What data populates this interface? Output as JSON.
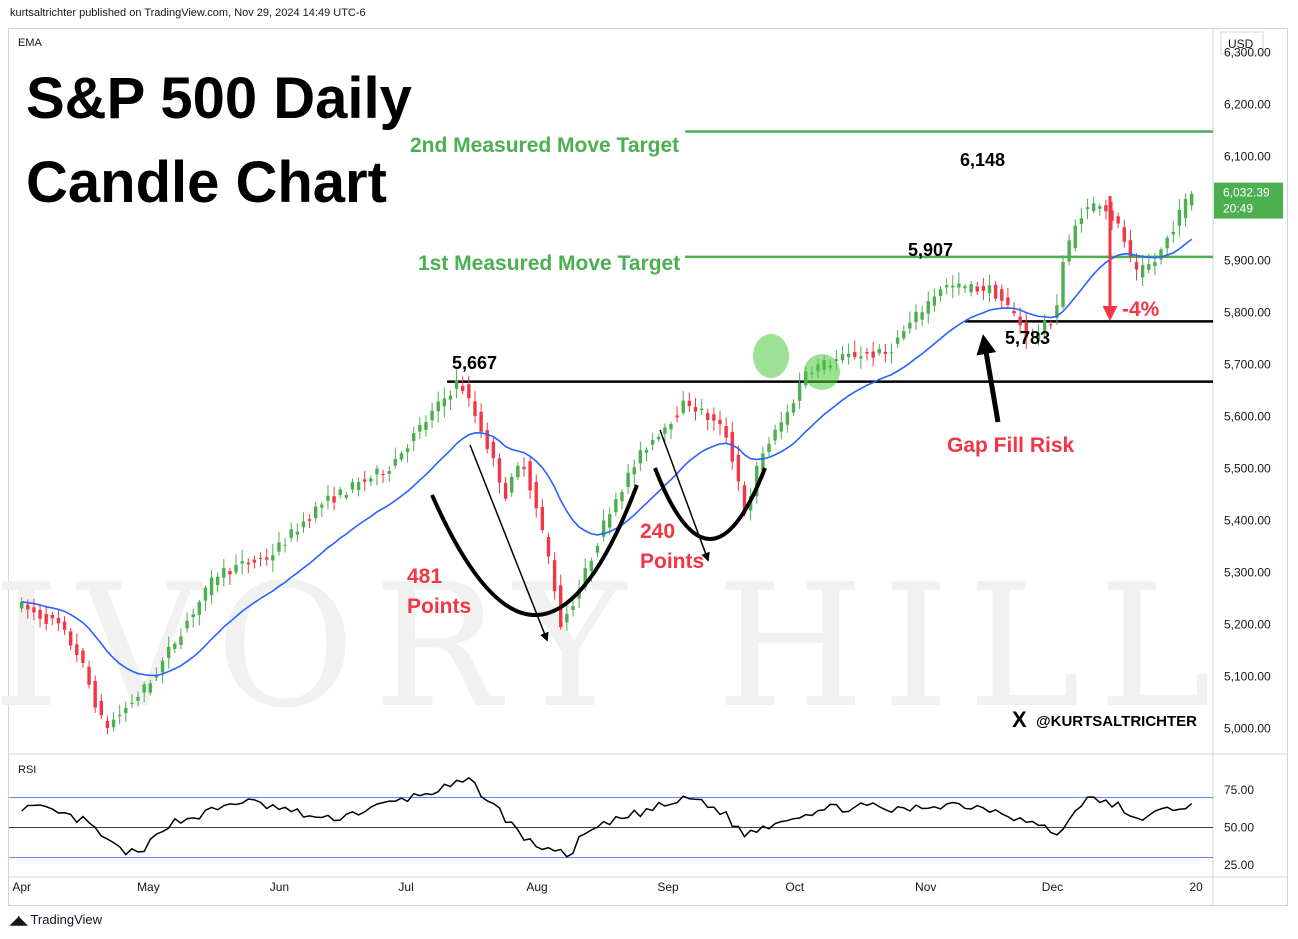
{
  "header": {
    "published": "kurtsaltrichter published on TradingView.com, Nov 29, 2024 14:49 UTC-6"
  },
  "footer": {
    "brand": "TradingView"
  },
  "colors": {
    "up": "#4caf50",
    "down": "#f23645",
    "ema": "#2962ff",
    "green_line": "#4caf50",
    "annot_red": "#f23645",
    "price_tag": "#4caf50"
  },
  "chart_data": {
    "type": "candlestick",
    "title": "S&P 500 Daily Candle Chart",
    "title_lines": [
      "S&P 500 Daily",
      "Candle Chart"
    ],
    "indicator_label": "EMA",
    "currency": "USD",
    "y_ticks": [
      "6,300.00",
      "6,200.00",
      "6,100.00",
      "6,000.00",
      "5,900.00",
      "5,800.00",
      "5,700.00",
      "5,600.00",
      "5,500.00",
      "5,400.00",
      "5,300.00",
      "5,200.00",
      "5,100.00",
      "5,000.00"
    ],
    "y_tick_values": [
      6300,
      6200,
      6100,
      6000,
      5900,
      5800,
      5700,
      5600,
      5500,
      5400,
      5300,
      5200,
      5100,
      5000
    ],
    "ylim": [
      4955,
      6345
    ],
    "x_ticks": [
      "Apr",
      "May",
      "Jun",
      "Jul",
      "Aug",
      "Sep",
      "Oct",
      "Nov",
      "Dec",
      "20"
    ],
    "x_tick_days": [
      0,
      30,
      61,
      91,
      122,
      153,
      183,
      214,
      244,
      278
    ],
    "x_days_range": [
      -3,
      282
    ],
    "last_price": {
      "value": "6,032.39",
      "time": "20:49",
      "numeric": 6032.39
    },
    "levels": [
      {
        "name": "2nd Measured Move Target",
        "value": 6148,
        "label": "6,148",
        "color": "green"
      },
      {
        "name": "1st Measured Move Target",
        "value": 5907,
        "label": "5,907",
        "color": "green"
      },
      {
        "name": "gap-fill",
        "value": 5783,
        "label": "5,783",
        "color": "black"
      },
      {
        "name": "breakout",
        "value": 5667,
        "label": "5,667",
        "color": "black"
      }
    ],
    "annotations": {
      "target2": "2nd Measured Move Target",
      "target1": "1st Measured Move Target",
      "drop1_line1": "481",
      "drop1_line2": "Points",
      "drop2_line1": "240",
      "drop2_line2": "Points",
      "gap_fill": "Gap Fill Risk",
      "pct": "-4%",
      "watermark": "IVORY HILL",
      "twitter": "@KURTSALTRICHTER",
      "twitter_x": "X"
    },
    "anchors": [
      [
        0,
        5240
      ],
      [
        10,
        5200
      ],
      [
        15,
        5140
      ],
      [
        21,
        5000
      ],
      [
        25,
        5030
      ],
      [
        32,
        5090
      ],
      [
        40,
        5200
      ],
      [
        48,
        5300
      ],
      [
        60,
        5330
      ],
      [
        72,
        5430
      ],
      [
        88,
        5500
      ],
      [
        96,
        5580
      ],
      [
        105,
        5670
      ],
      [
        110,
        5580
      ],
      [
        116,
        5450
      ],
      [
        120,
        5520
      ],
      [
        124,
        5400
      ],
      [
        127,
        5300
      ],
      [
        129,
        5200
      ],
      [
        133,
        5260
      ],
      [
        141,
        5430
      ],
      [
        149,
        5540
      ],
      [
        159,
        5630
      ],
      [
        168,
        5570
      ],
      [
        171,
        5480
      ],
      [
        173,
        5400
      ],
      [
        176,
        5520
      ],
      [
        183,
        5610
      ],
      [
        187,
        5690
      ],
      [
        199,
        5720
      ],
      [
        206,
        5720
      ],
      [
        214,
        5800
      ],
      [
        219,
        5850
      ],
      [
        231,
        5845
      ],
      [
        236,
        5800
      ],
      [
        240,
        5750
      ],
      [
        246,
        5790
      ],
      [
        248,
        5900
      ],
      [
        252,
        5990
      ],
      [
        257,
        6015
      ],
      [
        262,
        5950
      ],
      [
        265,
        5870
      ],
      [
        270,
        5900
      ],
      [
        278,
        6030
      ]
    ],
    "rsi": {
      "label": "RSI",
      "ticks": [
        "75.00",
        "50.00",
        "25.00"
      ],
      "tick_values": [
        75,
        50,
        25
      ],
      "ylim": [
        17,
        97
      ],
      "bands": [
        70,
        50,
        30
      ],
      "anchors": [
        [
          0,
          64
        ],
        [
          5,
          62
        ],
        [
          15,
          54
        ],
        [
          22,
          37
        ],
        [
          28,
          31
        ],
        [
          34,
          52
        ],
        [
          42,
          58
        ],
        [
          52,
          68
        ],
        [
          62,
          62
        ],
        [
          72,
          55
        ],
        [
          82,
          62
        ],
        [
          92,
          70
        ],
        [
          100,
          76
        ],
        [
          106,
          81
        ],
        [
          110,
          70
        ],
        [
          116,
          52
        ],
        [
          120,
          40
        ],
        [
          126,
          35
        ],
        [
          129,
          30
        ],
        [
          133,
          45
        ],
        [
          141,
          55
        ],
        [
          150,
          63
        ],
        [
          159,
          70
        ],
        [
          166,
          60
        ],
        [
          171,
          45
        ],
        [
          175,
          50
        ],
        [
          183,
          58
        ],
        [
          192,
          63
        ],
        [
          200,
          64
        ],
        [
          208,
          61
        ],
        [
          214,
          64
        ],
        [
          220,
          66
        ],
        [
          231,
          62
        ],
        [
          236,
          56
        ],
        [
          240,
          52
        ],
        [
          246,
          45
        ],
        [
          250,
          66
        ],
        [
          254,
          69
        ],
        [
          260,
          64
        ],
        [
          262,
          55
        ],
        [
          268,
          59
        ],
        [
          274,
          64
        ],
        [
          278,
          66
        ]
      ]
    }
  }
}
